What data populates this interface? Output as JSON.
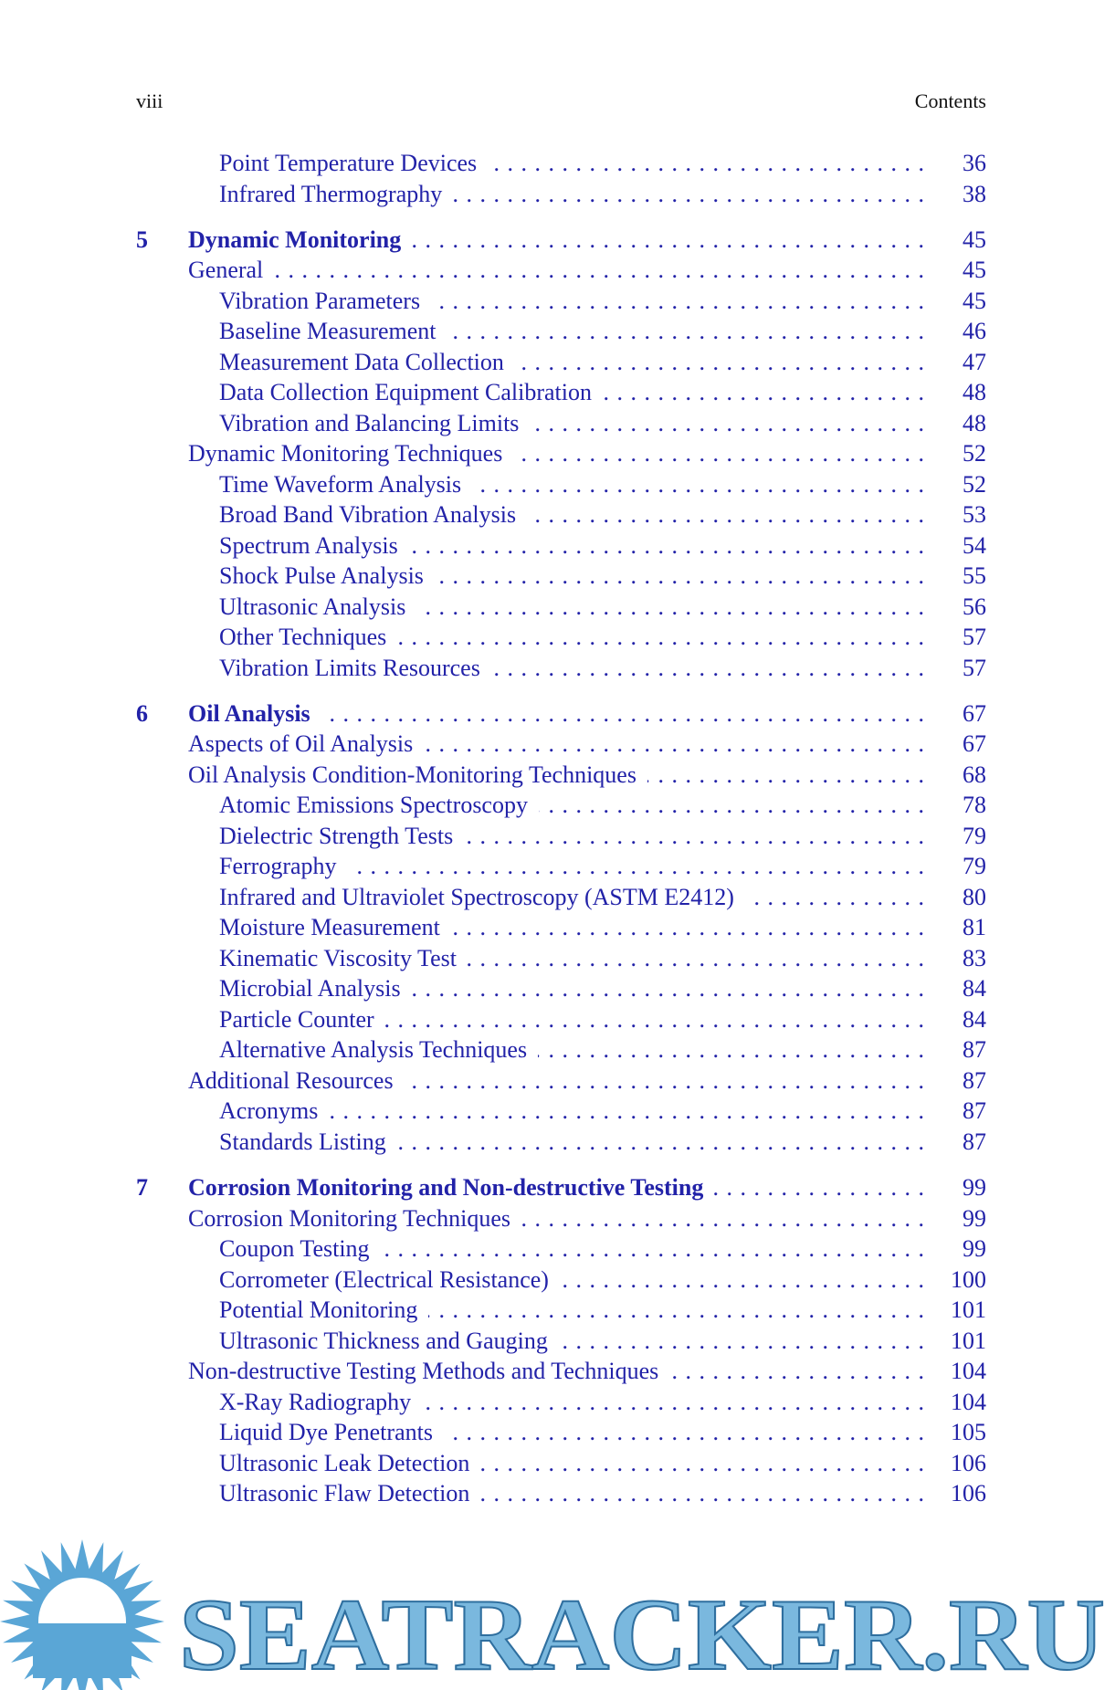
{
  "header": {
    "page": "viii",
    "title": "Contents"
  },
  "continued": [
    {
      "title": "Point Temperature Devices",
      "page": 36
    },
    {
      "title": "Infrared Thermography",
      "page": 38
    }
  ],
  "chapters": [
    {
      "number": "5",
      "title": "Dynamic Monitoring",
      "page": 45,
      "sections": [
        {
          "title": "General",
          "page": 45,
          "subsections": [
            {
              "title": "Vibration Parameters",
              "page": 45
            },
            {
              "title": "Baseline Measurement",
              "page": 46
            },
            {
              "title": "Measurement Data Collection",
              "page": 47
            },
            {
              "title": "Data Collection Equipment Calibration",
              "page": 48
            },
            {
              "title": "Vibration and Balancing Limits",
              "page": 48
            }
          ]
        },
        {
          "title": "Dynamic Monitoring Techniques",
          "page": 52,
          "subsections": [
            {
              "title": "Time Waveform Analysis",
              "page": 52
            },
            {
              "title": "Broad Band Vibration Analysis",
              "page": 53
            },
            {
              "title": "Spectrum Analysis",
              "page": 54
            },
            {
              "title": "Shock Pulse Analysis",
              "page": 55
            },
            {
              "title": "Ultrasonic Analysis",
              "page": 56
            },
            {
              "title": "Other Techniques",
              "page": 57
            },
            {
              "title": "Vibration Limits Resources",
              "page": 57
            }
          ]
        }
      ]
    },
    {
      "number": "6",
      "title": "Oil Analysis",
      "page": 67,
      "sections": [
        {
          "title": "Aspects of Oil Analysis",
          "page": 67
        },
        {
          "title": "Oil Analysis Condition-Monitoring Techniques",
          "page": 68,
          "subsections": [
            {
              "title": "Atomic Emissions Spectroscopy",
              "page": 78
            },
            {
              "title": "Dielectric Strength Tests",
              "page": 79
            },
            {
              "title": "Ferrography",
              "page": 79
            },
            {
              "title": "Infrared and Ultraviolet Spectroscopy (ASTM E2412)",
              "page": 80
            },
            {
              "title": "Moisture Measurement",
              "page": 81
            },
            {
              "title": "Kinematic Viscosity Test",
              "page": 83
            },
            {
              "title": "Microbial Analysis",
              "page": 84
            },
            {
              "title": "Particle Counter",
              "page": 84
            },
            {
              "title": "Alternative Analysis Techniques",
              "page": 87
            }
          ]
        },
        {
          "title": "Additional Resources",
          "page": 87,
          "subsections": [
            {
              "title": "Acronyms",
              "page": 87
            },
            {
              "title": "Standards Listing",
              "page": 87
            }
          ]
        }
      ]
    },
    {
      "number": "7",
      "title": "Corrosion Monitoring and Non-destructive Testing",
      "page": 99,
      "sections": [
        {
          "title": "Corrosion Monitoring Techniques",
          "page": 99,
          "subsections": [
            {
              "title": "Coupon Testing",
              "page": 99
            },
            {
              "title": "Corrometer (Electrical Resistance)",
              "page": 100
            },
            {
              "title": "Potential Monitoring",
              "page": 101
            },
            {
              "title": "Ultrasonic Thickness and Gauging",
              "page": 101
            }
          ]
        },
        {
          "title": "Non-destructive Testing Methods and Techniques",
          "page": 104,
          "subsections": [
            {
              "title": "X-Ray Radiography",
              "page": 104
            },
            {
              "title": "Liquid Dye Penetrants",
              "page": 105
            },
            {
              "title": "Ultrasonic Leak Detection",
              "page": 106
            },
            {
              "title": "Ultrasonic Flaw Detection",
              "page": 106
            }
          ]
        }
      ]
    }
  ],
  "watermark": "SEATRACKER.RU"
}
